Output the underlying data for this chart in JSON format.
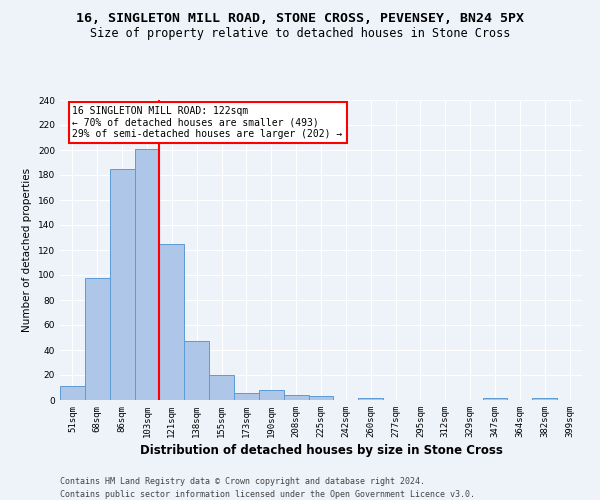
{
  "title_line1": "16, SINGLETON MILL ROAD, STONE CROSS, PEVENSEY, BN24 5PX",
  "title_line2": "Size of property relative to detached houses in Stone Cross",
  "xlabel": "Distribution of detached houses by size in Stone Cross",
  "ylabel": "Number of detached properties",
  "bins": [
    "51sqm",
    "68sqm",
    "86sqm",
    "103sqm",
    "121sqm",
    "138sqm",
    "155sqm",
    "173sqm",
    "190sqm",
    "208sqm",
    "225sqm",
    "242sqm",
    "260sqm",
    "277sqm",
    "295sqm",
    "312sqm",
    "329sqm",
    "347sqm",
    "364sqm",
    "382sqm",
    "399sqm"
  ],
  "bar_heights": [
    11,
    98,
    185,
    201,
    125,
    47,
    20,
    6,
    8,
    4,
    3,
    0,
    2,
    0,
    0,
    0,
    0,
    2,
    0,
    2,
    0
  ],
  "bar_color": "#aec6e8",
  "bar_edge_color": "#5b9bd5",
  "vline_x_index": 4,
  "annotation_text": "16 SINGLETON MILL ROAD: 122sqm\n← 70% of detached houses are smaller (493)\n29% of semi-detached houses are larger (202) →",
  "annotation_box_color": "white",
  "annotation_box_edge_color": "red",
  "vline_color": "red",
  "ylim": [
    0,
    240
  ],
  "yticks": [
    0,
    20,
    40,
    60,
    80,
    100,
    120,
    140,
    160,
    180,
    200,
    220,
    240
  ],
  "footer_line1": "Contains HM Land Registry data © Crown copyright and database right 2024.",
  "footer_line2": "Contains public sector information licensed under the Open Government Licence v3.0.",
  "bg_color": "#eef2f9",
  "grid_color": "white",
  "title_fontsize": 9.5,
  "subtitle_fontsize": 8.5,
  "ylabel_fontsize": 7.5,
  "xlabel_fontsize": 8.5,
  "tick_fontsize": 6.5,
  "annotation_fontsize": 7,
  "footer_fontsize": 6
}
